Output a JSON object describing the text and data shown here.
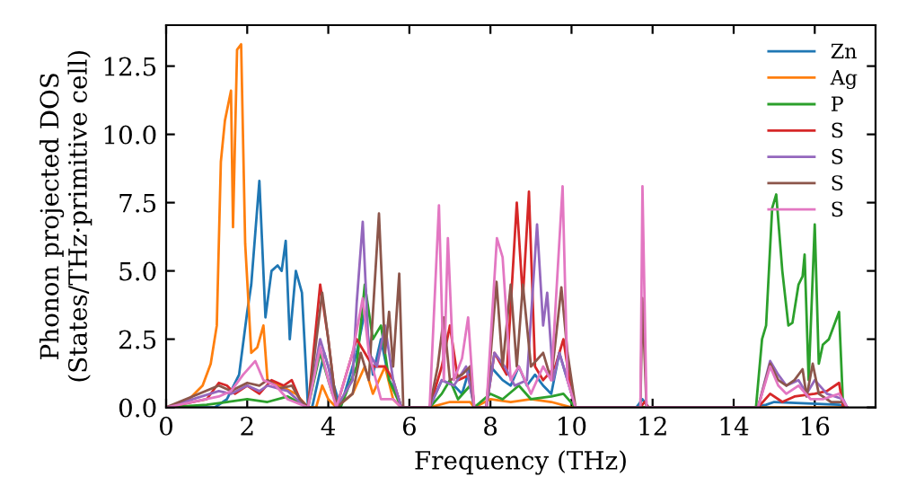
{
  "chart_data": {
    "type": "line",
    "xlabel": "Frequency (THz)",
    "ylabel": "Phonon projected DOS\n(States/THz·primitive cell)",
    "xlim": [
      0,
      17.5
    ],
    "ylim": [
      0,
      14
    ],
    "xticks": [
      0,
      2,
      4,
      6,
      8,
      10,
      12,
      14,
      16
    ],
    "yticks": [
      {
        "value": 0,
        "label": "0.0"
      },
      2.5,
      {
        "value": 5,
        "label": "5.0"
      },
      7.5,
      {
        "value": 10,
        "label": "10.0"
      },
      12.5
    ],
    "grid": false,
    "legend": "top right",
    "marker": "none",
    "line_style": "solid",
    "series": [
      {
        "name": "Zn",
        "color": "#1f77b4",
        "x": [
          0,
          1.2,
          1.5,
          1.8,
          2.0,
          2.1,
          2.3,
          2.45,
          2.6,
          2.75,
          2.85,
          2.95,
          3.05,
          3.2,
          3.35,
          3.5,
          3.6,
          3.9,
          4.1,
          4.3,
          4.7,
          4.9,
          5.1,
          5.3,
          5.5,
          5.7,
          5.8,
          6.5,
          6.8,
          7.1,
          7.3,
          7.5,
          7.6,
          7.9,
          8.0,
          8.3,
          8.5,
          8.7,
          8.9,
          9.1,
          9.3,
          9.5,
          9.7,
          9.9,
          10.1,
          11.6,
          11.75,
          11.9,
          14.5,
          14.8,
          15.0,
          16.6,
          16.8
        ],
        "values": [
          0,
          0,
          0.3,
          1.2,
          3.5,
          4.5,
          8.3,
          3.3,
          5.0,
          5.2,
          5.0,
          6.1,
          2.5,
          5.0,
          4.2,
          0,
          0,
          2.0,
          1.0,
          0,
          2.0,
          3.5,
          1.2,
          2.5,
          1.0,
          0.5,
          0,
          0,
          1.0,
          0.8,
          0.5,
          1.5,
          0,
          0,
          1.5,
          1.0,
          0.8,
          1.5,
          0.8,
          1.2,
          0.8,
          0.5,
          2.0,
          1.0,
          0,
          0,
          0.3,
          0,
          0,
          0.1,
          0.2,
          0.1,
          0
        ]
      },
      {
        "name": "Ag",
        "color": "#ff7f0e",
        "x": [
          0,
          0.5,
          0.9,
          1.1,
          1.25,
          1.35,
          1.45,
          1.6,
          1.65,
          1.75,
          1.85,
          1.95,
          2.1,
          2.25,
          2.4,
          2.5,
          2.8,
          3.2,
          3.5,
          3.7,
          3.85,
          4.0,
          4.2,
          4.6,
          4.9,
          5.1,
          5.4,
          5.6,
          5.8,
          6.5,
          7.0,
          7.5,
          7.6,
          8.0,
          8.5,
          9.0,
          9.5,
          10.0,
          14.5,
          16.8
        ],
        "values": [
          0,
          0.2,
          0.8,
          1.6,
          3.0,
          9.0,
          10.5,
          11.6,
          6.6,
          13.1,
          13.3,
          6.0,
          2.0,
          2.2,
          3.0,
          1.0,
          0.8,
          0.5,
          0,
          0,
          0.8,
          0.3,
          0,
          0.5,
          1.5,
          0.5,
          1.5,
          0.3,
          0,
          0,
          0.2,
          0.2,
          0,
          0.3,
          0.2,
          0.3,
          0.2,
          0,
          0,
          0
        ]
      },
      {
        "name": "P",
        "color": "#2ca02c",
        "x": [
          0,
          1.0,
          1.5,
          2.0,
          2.5,
          3.0,
          3.5,
          3.8,
          4.1,
          4.3,
          4.7,
          4.9,
          5.1,
          5.3,
          5.5,
          5.8,
          6.5,
          6.8,
          7.0,
          7.2,
          7.5,
          7.6,
          8.0,
          8.3,
          8.7,
          9.0,
          9.5,
          9.8,
          10.1,
          14.55,
          14.7,
          14.8,
          14.95,
          15.05,
          15.2,
          15.35,
          15.45,
          15.6,
          15.7,
          15.75,
          15.85,
          16.0,
          16.1,
          16.2,
          16.35,
          16.6,
          16.7
        ],
        "values": [
          0,
          0.1,
          0.2,
          0.3,
          0.2,
          0.4,
          0,
          2.0,
          0.5,
          0,
          1.5,
          4.5,
          2.5,
          3.0,
          1.0,
          0,
          0,
          0.5,
          1.0,
          0.3,
          0.8,
          0,
          0.5,
          0.3,
          0.8,
          0.3,
          0.4,
          0.5,
          0,
          0,
          2.5,
          3.0,
          7.3,
          7.8,
          5.0,
          3.0,
          3.1,
          4.5,
          4.8,
          5.6,
          1.0,
          6.7,
          1.6,
          2.3,
          2.5,
          3.5,
          0
        ]
      },
      {
        "name": "S",
        "color": "#d62728",
        "x": [
          0,
          1.0,
          1.3,
          1.5,
          1.7,
          2.0,
          2.3,
          2.6,
          2.9,
          3.1,
          3.3,
          3.5,
          3.8,
          4.0,
          4.2,
          4.7,
          4.9,
          5.1,
          5.4,
          5.6,
          5.8,
          6.5,
          6.8,
          7.0,
          7.2,
          7.5,
          7.6,
          7.9,
          8.1,
          8.4,
          8.65,
          8.8,
          8.95,
          9.1,
          9.3,
          9.6,
          9.8,
          10.0,
          10.1,
          11.7,
          11.8,
          11.9,
          14.6,
          14.9,
          15.2,
          15.5,
          16.0,
          16.3,
          16.6,
          16.7
        ],
        "values": [
          0,
          0.3,
          0.9,
          0.8,
          0.5,
          0.8,
          0.5,
          1.0,
          0.8,
          1.0,
          0.3,
          0,
          4.5,
          2.5,
          0,
          2.5,
          2.0,
          1.5,
          1.5,
          1.0,
          0,
          0,
          1.5,
          3.0,
          1.0,
          1.2,
          0,
          0,
          2.0,
          1.2,
          7.5,
          4.0,
          7.9,
          1.5,
          1.0,
          1.5,
          2.5,
          0.5,
          0,
          0,
          0.2,
          0,
          0,
          0.5,
          0.2,
          0.4,
          0.5,
          0.6,
          0.9,
          0
        ]
      },
      {
        "name": "S",
        "color": "#9467bd",
        "x": [
          0,
          1.3,
          1.6,
          2.0,
          2.3,
          2.5,
          3.0,
          3.3,
          3.5,
          3.8,
          4.0,
          4.2,
          4.6,
          4.7,
          4.85,
          5.0,
          5.2,
          5.4,
          5.6,
          5.8,
          6.5,
          6.8,
          7.1,
          7.4,
          7.6,
          7.9,
          8.1,
          8.35,
          8.6,
          8.9,
          9.15,
          9.3,
          9.4,
          9.55,
          9.7,
          9.9,
          10.1,
          11.7,
          11.75,
          11.85,
          14.6,
          14.9,
          15.1,
          15.3,
          15.6,
          15.8,
          16.0,
          16.3,
          16.7,
          16.8
        ],
        "values": [
          0,
          0.6,
          0.5,
          0.8,
          0.6,
          0.8,
          0.6,
          0.2,
          0,
          2.5,
          1.5,
          0,
          1.0,
          3.8,
          6.8,
          2.0,
          1.5,
          3.0,
          1.0,
          0,
          0,
          1.0,
          0.8,
          1.5,
          0,
          0,
          2.0,
          1.5,
          0.8,
          1.0,
          6.7,
          3.0,
          4.2,
          1.0,
          2.0,
          1.0,
          0,
          0,
          null,
          0,
          0,
          1.7,
          1.2,
          0.8,
          1.0,
          0.5,
          1.0,
          0.5,
          0.3,
          0
        ]
      },
      {
        "name": "S",
        "color": "#8c564b",
        "x": [
          0,
          1.3,
          1.6,
          2.0,
          2.3,
          2.5,
          2.8,
          3.1,
          3.3,
          3.5,
          3.85,
          4.0,
          4.2,
          4.6,
          4.8,
          5.0,
          5.25,
          5.4,
          5.5,
          5.6,
          5.75,
          5.85,
          6.5,
          6.7,
          6.85,
          7.0,
          7.3,
          7.5,
          7.6,
          7.9,
          8.15,
          8.3,
          8.5,
          8.65,
          8.8,
          9.0,
          9.3,
          9.5,
          9.75,
          9.9,
          10.1,
          11.7,
          11.75,
          11.85,
          14.6,
          14.9,
          15.1,
          15.3,
          15.5,
          15.7,
          15.8,
          15.95,
          16.1,
          16.4,
          16.7,
          16.8
        ],
        "values": [
          0,
          0.8,
          0.6,
          0.9,
          0.8,
          1.0,
          0.7,
          0.8,
          0.3,
          0,
          4.2,
          2.5,
          0,
          0.5,
          2.0,
          1.0,
          7.1,
          2.0,
          3.5,
          1.5,
          4.9,
          0,
          0,
          1.5,
          3.3,
          1.0,
          1.2,
          1.5,
          0,
          0,
          4.6,
          1.5,
          4.5,
          1.5,
          4.5,
          1.5,
          2.0,
          1.0,
          4.4,
          2.0,
          0,
          0,
          4.0,
          0,
          0,
          1.6,
          1.0,
          0.8,
          1.0,
          1.4,
          0.4,
          1.6,
          0.5,
          0.2,
          0.2,
          0
        ]
      },
      {
        "name": "S",
        "color": "#e377c2",
        "x": [
          0,
          1.3,
          1.6,
          1.9,
          2.2,
          2.4,
          2.7,
          3.0,
          3.5,
          3.8,
          4.0,
          4.2,
          4.6,
          4.85,
          5.0,
          5.3,
          5.6,
          5.8,
          6.5,
          6.73,
          6.85,
          6.95,
          7.1,
          7.3,
          7.45,
          7.6,
          7.9,
          8.16,
          8.3,
          8.5,
          8.7,
          9.0,
          9.3,
          9.5,
          9.78,
          9.9,
          10.1,
          11.7,
          11.75,
          11.85,
          14.6,
          14.9,
          15.1,
          15.3,
          15.6,
          15.9,
          16.2,
          16.6,
          16.8
        ],
        "values": [
          0,
          0.4,
          0.6,
          1.2,
          1.7,
          1.0,
          0.8,
          0.3,
          0,
          2.2,
          1.0,
          0,
          2.0,
          4.0,
          2.0,
          0.3,
          0.3,
          0,
          0,
          7.4,
          1.0,
          6.2,
          1.0,
          1.8,
          3.3,
          0,
          0,
          6.2,
          5.5,
          1.0,
          1.5,
          0.5,
          1.5,
          1.0,
          8.1,
          1.0,
          0,
          0,
          8.1,
          0,
          0,
          1.5,
          0.8,
          0.5,
          0.8,
          0.3,
          0.3,
          0.5,
          0
        ]
      }
    ]
  }
}
